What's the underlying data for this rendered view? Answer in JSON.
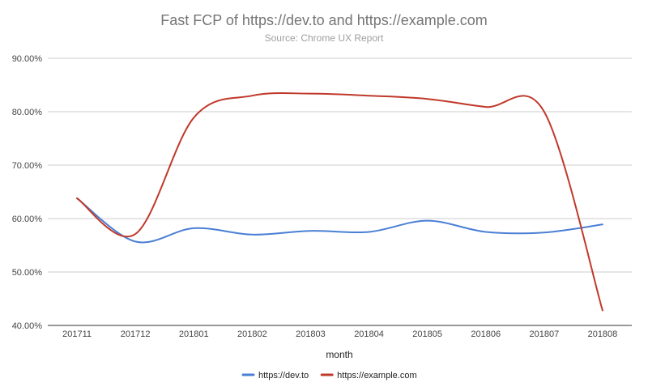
{
  "chart_data": {
    "type": "line",
    "title": "Fast FCP of https://dev.to and https://example.com",
    "subtitle": "Source: Chrome UX Report",
    "xlabel": "month",
    "ylabel": "",
    "categories": [
      "201711",
      "201712",
      "201801",
      "201802",
      "201803",
      "201804",
      "201805",
      "201806",
      "201807",
      "201808"
    ],
    "y_ticks": [
      "40.00%",
      "50.00%",
      "60.00%",
      "70.00%",
      "80.00%",
      "90.00%"
    ],
    "ylim": [
      40,
      90
    ],
    "grid": true,
    "legend_position": "bottom",
    "series": [
      {
        "name": "https://dev.to",
        "color": "#4a7fd4",
        "values": [
          63.8,
          55.7,
          58.2,
          57.0,
          57.7,
          57.5,
          59.6,
          57.5,
          57.4,
          58.9
        ]
      },
      {
        "name": "https://example.com",
        "color": "#c0392b",
        "values": [
          63.8,
          57.1,
          78.9,
          83.0,
          83.4,
          83.0,
          82.4,
          80.9,
          80.0,
          42.8
        ]
      }
    ]
  }
}
